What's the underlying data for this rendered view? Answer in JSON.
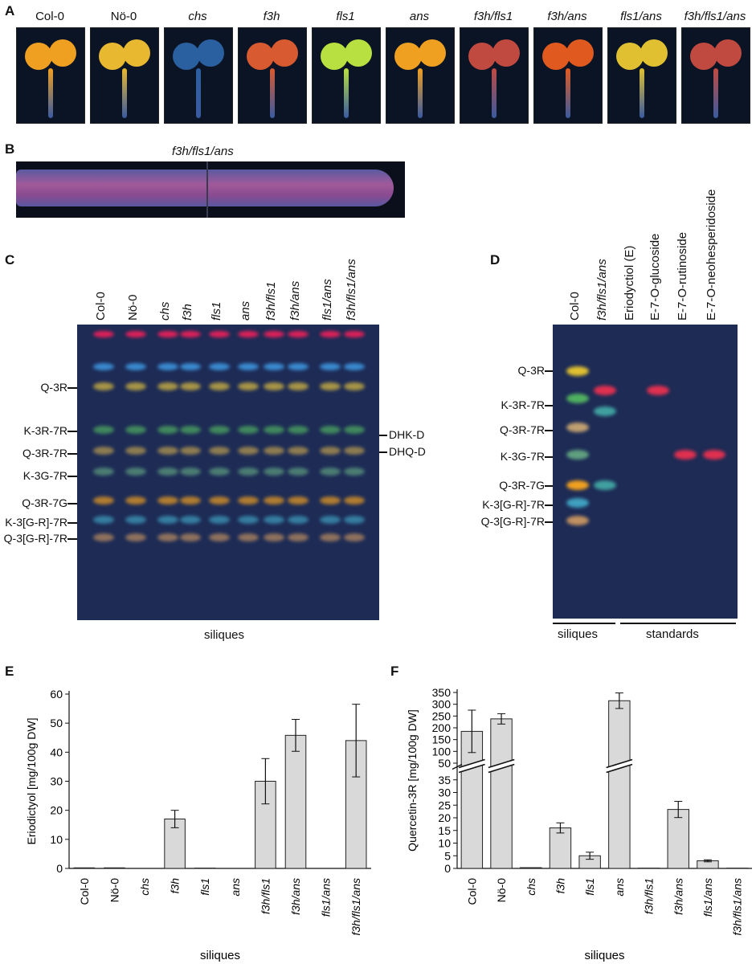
{
  "panels": {
    "a": "A",
    "b": "B",
    "c": "C",
    "d": "D",
    "e": "E",
    "f": "F"
  },
  "panel_a": {
    "labels": [
      "Col-0",
      "Nö-0",
      "chs",
      "f3h",
      "fls1",
      "ans",
      "f3h/fls1",
      "f3h/ans",
      "fls1/ans",
      "f3h/fls1/ans"
    ],
    "italic": [
      false,
      false,
      true,
      true,
      true,
      true,
      true,
      true,
      true,
      true
    ],
    "colors": [
      "#f0a020",
      "#e8b830",
      "#2a60a0",
      "#d85a30",
      "#b8e040",
      "#f0a020",
      "#c04a40",
      "#e05a20",
      "#e0c030",
      "#c04a40"
    ]
  },
  "panel_b": {
    "title": "f3h/fls1/ans"
  },
  "panel_c": {
    "lanes": [
      "Col-0",
      "Nö-0",
      "chs",
      "f3h",
      "fls1",
      "ans",
      "f3h/fls1",
      "f3h/ans",
      "fls1/ans",
      "f3h/fls1/ans"
    ],
    "italic": [
      false,
      false,
      true,
      true,
      true,
      true,
      true,
      true,
      true,
      true
    ],
    "left_bands": [
      "Q-3R",
      "K-3R-7R",
      "Q-3R-7R",
      "K-3G-7R",
      "Q-3R-7G",
      "K-3[G-R]-7R",
      "Q-3[G-R]-7R"
    ],
    "right_bands": [
      "DHK-D",
      "DHQ-D"
    ],
    "caption": "siliques"
  },
  "panel_d": {
    "lanes": [
      "Col-0",
      "f3h/fls1/ans",
      "Eriodyctiol (E)",
      "E-7-O-glucoside",
      "E-7-O-rutinoside",
      "E-7-O-neohesperidoside"
    ],
    "italic": [
      false,
      true,
      false,
      false,
      false,
      false
    ],
    "bands": [
      "Q-3R",
      "K-3R-7R",
      "Q-3R-7R",
      "K-3G-7R",
      "Q-3R-7G",
      "K-3[G-R]-7R",
      "Q-3[G-R]-7R"
    ],
    "group_siliques": "siliques",
    "group_standards": "standards"
  },
  "chart_data": [
    {
      "type": "bar",
      "panel": "E",
      "categories": [
        "Col-0",
        "Nö-0",
        "chs",
        "f3h",
        "fls1",
        "ans",
        "f3h/fls1",
        "f3h/ans",
        "fls1/ans",
        "f3h/fls1/ans"
      ],
      "italic": [
        false,
        false,
        true,
        true,
        true,
        true,
        true,
        true,
        true,
        true
      ],
      "values": [
        0.2,
        0.2,
        0,
        17,
        0.1,
        0,
        30,
        45.8,
        0,
        44
      ],
      "errors": [
        0,
        0,
        0,
        3,
        0,
        0,
        7.8,
        5.5,
        0,
        12.5
      ],
      "ylabel": "Eriodictyol [mg/100g DW]",
      "xlabel": "siliques",
      "ylim": [
        0,
        60
      ],
      "yticks": [
        0,
        10,
        20,
        30,
        40,
        50,
        60
      ],
      "grid": false,
      "bar_color": "#d9d9d9"
    },
    {
      "type": "bar",
      "panel": "F",
      "categories": [
        "Col-0",
        "Nö-0",
        "chs",
        "f3h",
        "fls1",
        "ans",
        "f3h/fls1",
        "f3h/ans",
        "fls1/ans",
        "f3h/fls1/ans"
      ],
      "italic": [
        false,
        false,
        true,
        true,
        true,
        true,
        true,
        true,
        true,
        true
      ],
      "values": [
        185,
        238,
        0.3,
        16,
        5,
        315,
        0.1,
        23.3,
        3,
        0.1
      ],
      "errors": [
        90,
        22,
        0,
        2,
        1.4,
        33,
        0,
        3.2,
        0.4,
        0
      ],
      "ylabel": "Quercetin-3R [mg/100g DW]",
      "xlabel": "siliques",
      "broken_axis": true,
      "lower_range": [
        0,
        40
      ],
      "upper_range": [
        50,
        350
      ],
      "yticks_lower": [
        0,
        5,
        10,
        15,
        20,
        25,
        30,
        35
      ],
      "yticks_upper": [
        50,
        100,
        150,
        200,
        250,
        300,
        350
      ],
      "grid": false,
      "bar_color": "#d9d9d9"
    }
  ]
}
